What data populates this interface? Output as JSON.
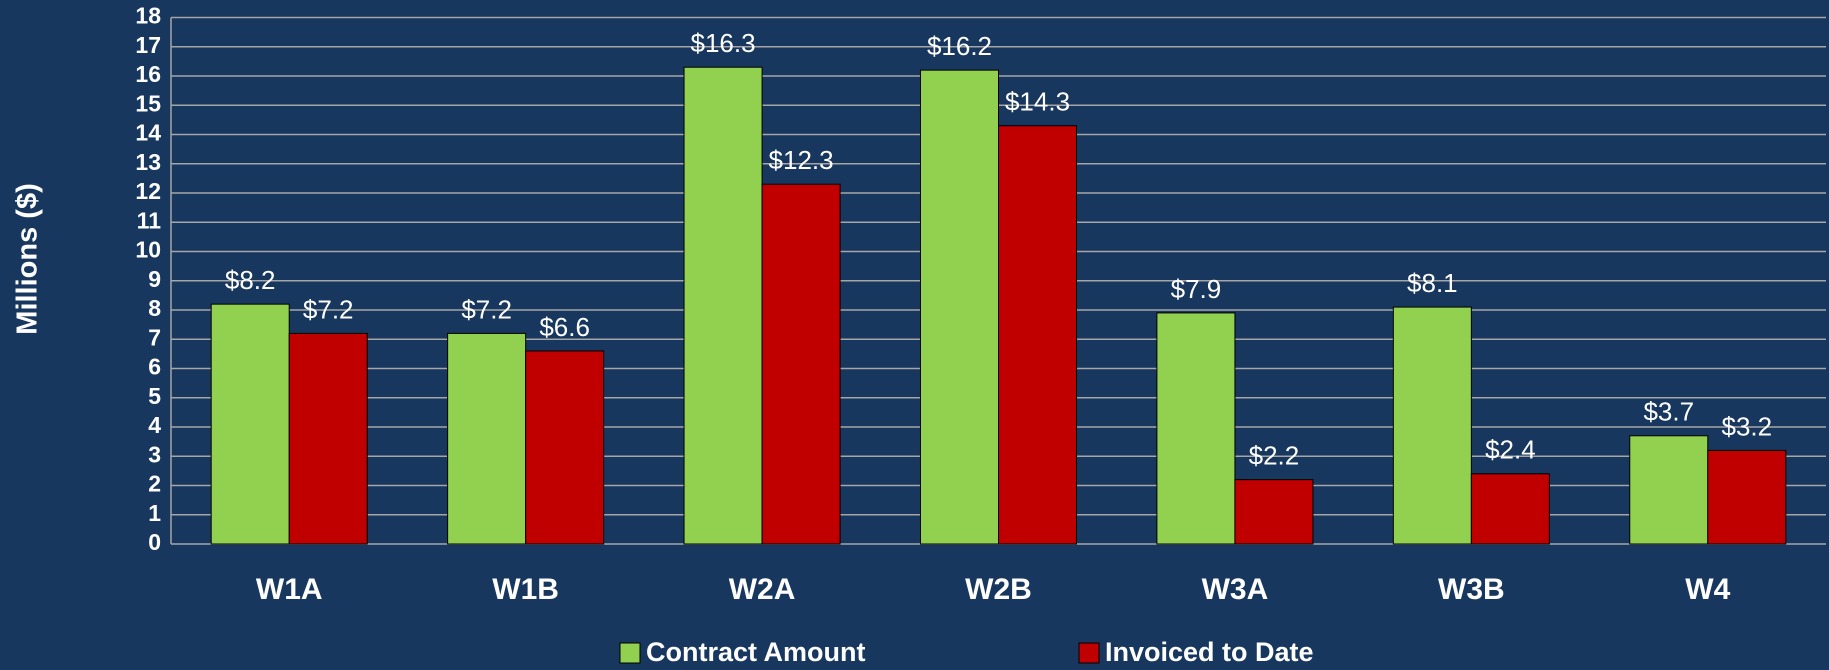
{
  "chart_data": {
    "type": "bar",
    "y_label": "Millions ($)",
    "categories": [
      "W1A",
      "W1B",
      "W2A",
      "W2B",
      "W3A",
      "W3B",
      "W4"
    ],
    "series": [
      {
        "name": "Contract Amount",
        "color": "#92d050",
        "values": [
          8.2,
          7.2,
          16.3,
          16.2,
          7.9,
          8.1,
          3.7
        ],
        "value_labels": [
          "$8.2",
          "$7.2",
          "$16.3",
          "$16.2",
          "$7.9",
          "$8.1",
          "$3.7"
        ]
      },
      {
        "name": "Invoiced to Date",
        "color": "#c00000",
        "values": [
          7.2,
          6.6,
          12.3,
          14.3,
          2.2,
          2.4,
          3.2
        ],
        "value_labels": [
          "$7.2",
          "$6.6",
          "$12.3",
          "$14.3",
          "$2.2",
          "$2.4",
          "$3.2"
        ]
      }
    ],
    "ylim": [
      0,
      18
    ],
    "yticks": [
      0,
      1,
      2,
      3,
      4,
      5,
      6,
      7,
      8,
      9,
      10,
      11,
      12,
      13,
      14,
      15,
      16,
      17,
      18
    ],
    "grid": true,
    "legend": "bottom"
  }
}
